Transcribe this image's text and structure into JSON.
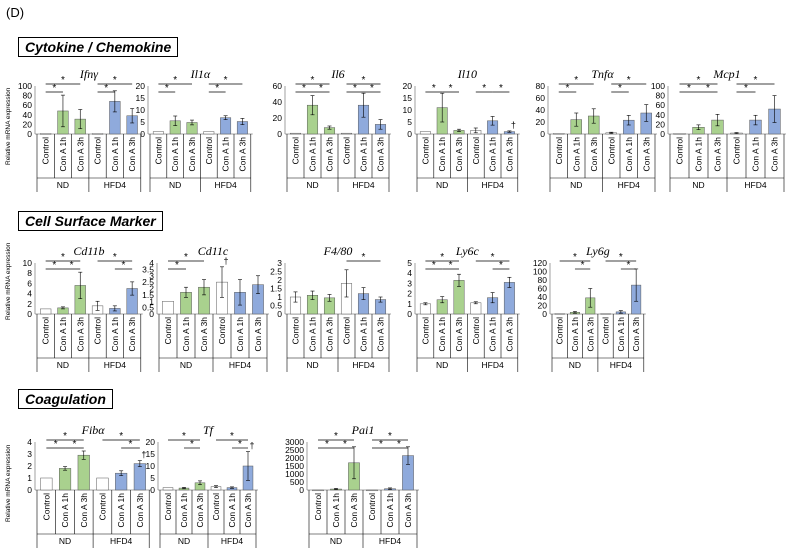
{
  "panel_label": "(D)",
  "sections": [
    {
      "title": "Cytokine / Chemokine"
    },
    {
      "title": "Cell Surface Marker"
    },
    {
      "title": "Coagulation"
    }
  ],
  "y_axis_label": "Relative mRNA expression",
  "colors": {
    "nd": "#a9d18e",
    "hfd4": "#8faadc",
    "control": "#ffffff",
    "edge": "#595959"
  },
  "chart_data": [
    {
      "type": "bar",
      "section": 0,
      "title": "Ifnγ",
      "categories": [
        "Control",
        "Con A 1h",
        "Con A 3h",
        "Control",
        "Con A 1h",
        "Con A 3h"
      ],
      "groups": [
        "ND",
        "HFD4"
      ],
      "values": [
        1,
        48,
        31,
        1,
        68,
        38
      ],
      "errors": [
        0,
        33,
        20,
        0,
        22,
        15
      ],
      "ylim": [
        0,
        100
      ],
      "yticks": [
        0,
        20,
        40,
        60,
        80,
        100
      ],
      "sig": [
        [
          0,
          1,
          "*"
        ],
        [
          0,
          2,
          "*"
        ],
        [
          3,
          4,
          "*"
        ],
        [
          3,
          5,
          "*"
        ]
      ],
      "markers": []
    },
    {
      "type": "bar",
      "section": 0,
      "title": "Il1α",
      "categories": [
        "Control",
        "Con A 1h",
        "Con A 3h",
        "Control",
        "Con A 1h",
        "Con A 3h"
      ],
      "groups": [
        "ND",
        "HFD4"
      ],
      "values": [
        1,
        5.5,
        4.8,
        1,
        6.8,
        5.2
      ],
      "errors": [
        0,
        2,
        1,
        0,
        0.8,
        1.3
      ],
      "ylim": [
        0,
        20
      ],
      "yticks": [
        0,
        5,
        10,
        15,
        20
      ],
      "sig": [
        [
          0,
          1,
          "*"
        ],
        [
          0,
          2,
          "*"
        ],
        [
          3,
          4,
          "*"
        ],
        [
          3,
          5,
          "*"
        ]
      ],
      "markers": []
    },
    {
      "type": "bar",
      "section": 0,
      "title": "Il6",
      "categories": [
        "Control",
        "Con A 1h",
        "Con A 3h",
        "Control",
        "Con A 1h",
        "Con A 3h"
      ],
      "groups": [
        "ND",
        "HFD4"
      ],
      "values": [
        1,
        36,
        8,
        1,
        36,
        12
      ],
      "errors": [
        0,
        12,
        2,
        0,
        15,
        6
      ],
      "ylim": [
        0,
        60
      ],
      "yticks": [
        0,
        20,
        40,
        60
      ],
      "sig": [
        [
          0,
          1,
          "*"
        ],
        [
          1,
          2,
          "*"
        ],
        [
          0,
          2,
          "*"
        ],
        [
          3,
          4,
          "*"
        ],
        [
          4,
          5,
          "*"
        ],
        [
          3,
          5,
          "*"
        ]
      ],
      "markers": []
    },
    {
      "type": "bar",
      "section": 0,
      "title": "Il10",
      "categories": [
        "Control",
        "Con A 1h",
        "Con A 3h",
        "Control",
        "Con A 1h",
        "Con A 3h"
      ],
      "groups": [
        "ND",
        "HFD4"
      ],
      "values": [
        1,
        11,
        1.5,
        1.5,
        5.5,
        1
      ],
      "errors": [
        0,
        6,
        0.5,
        1,
        1.8,
        0.3
      ],
      "ylim": [
        0,
        20
      ],
      "yticks": [
        0,
        5,
        10,
        15,
        20
      ],
      "sig": [
        [
          0,
          1,
          "*"
        ],
        [
          1,
          2,
          "*"
        ],
        [
          3,
          4,
          "*"
        ],
        [
          4,
          5,
          "*"
        ]
      ],
      "markers": [
        [
          5,
          "†"
        ]
      ]
    },
    {
      "type": "bar",
      "section": 0,
      "title": "Tnfα",
      "categories": [
        "Control",
        "Con A 1h",
        "Con A 3h",
        "Control",
        "Con A 1h",
        "Con A 3h"
      ],
      "groups": [
        "ND",
        "HFD4"
      ],
      "values": [
        1,
        24,
        30,
        2,
        23,
        35
      ],
      "errors": [
        0,
        11,
        12,
        1,
        8,
        14
      ],
      "ylim": [
        0,
        80
      ],
      "yticks": [
        0,
        20,
        40,
        60,
        80
      ],
      "sig": [
        [
          0,
          1,
          "*"
        ],
        [
          0,
          2,
          "*"
        ],
        [
          3,
          4,
          "*"
        ],
        [
          3,
          5,
          "*"
        ]
      ],
      "markers": []
    },
    {
      "type": "bar",
      "section": 0,
      "title": "Mcp1",
      "categories": [
        "Control",
        "Con A 1h",
        "Con A 3h",
        "Control",
        "Con A 1h",
        "Con A 3h"
      ],
      "groups": [
        "ND",
        "HFD4"
      ],
      "values": [
        1,
        14,
        29,
        2,
        29,
        52
      ],
      "errors": [
        0,
        5,
        12,
        1,
        10,
        28
      ],
      "ylim": [
        0,
        100
      ],
      "yticks": [
        0,
        20,
        40,
        60,
        80,
        100
      ],
      "sig": [
        [
          0,
          1,
          "*"
        ],
        [
          1,
          2,
          "*"
        ],
        [
          0,
          2,
          "*"
        ],
        [
          3,
          4,
          "*"
        ],
        [
          3,
          5,
          "*"
        ]
      ],
      "markers": []
    },
    {
      "type": "bar",
      "section": 1,
      "title": "Cd11b",
      "categories": [
        "Control",
        "Con A 1h",
        "Con A 3h",
        "Control",
        "Con A 1h",
        "Con A 3h"
      ],
      "groups": [
        "ND",
        "HFD4"
      ],
      "values": [
        1,
        1.2,
        5.6,
        1.6,
        1.1,
        5
      ],
      "errors": [
        0,
        0.2,
        2.6,
        0.9,
        0.5,
        1.3
      ],
      "ylim": [
        0,
        10
      ],
      "yticks": [
        0,
        2,
        4,
        6,
        8,
        10
      ],
      "sig": [
        [
          0,
          1,
          "*"
        ],
        [
          1,
          2,
          "*"
        ],
        [
          0,
          2,
          "*"
        ],
        [
          4,
          5,
          "*"
        ],
        [
          3,
          5,
          "*"
        ]
      ],
      "markers": []
    },
    {
      "type": "bar",
      "section": 1,
      "title": "Cd11c",
      "categories": [
        "Control",
        "Con A 1h",
        "Con A 3h",
        "Control",
        "Con A 1h",
        "Con A 3h"
      ],
      "groups": [
        "ND",
        "HFD4"
      ],
      "values": [
        1,
        1.7,
        2.1,
        2.5,
        1.7,
        2.3
      ],
      "errors": [
        0,
        0.4,
        0.6,
        1.2,
        1,
        0.7
      ],
      "ylim": [
        0,
        4
      ],
      "yticks": [
        0,
        0.5,
        1,
        1.5,
        2,
        2.5,
        3,
        3.5,
        4
      ],
      "sig": [
        [
          0,
          1,
          "*"
        ],
        [
          0,
          2,
          "*"
        ]
      ],
      "markers": [
        [
          3,
          "†"
        ]
      ]
    },
    {
      "type": "bar",
      "section": 1,
      "title": "F4/80",
      "categories": [
        "Control",
        "Con A 1h",
        "Con A 3h",
        "Control",
        "Con A 1h",
        "Con A 3h"
      ],
      "groups": [
        "ND",
        "HFD4"
      ],
      "values": [
        1,
        1.1,
        0.95,
        1.8,
        1.2,
        0.85
      ],
      "errors": [
        0.3,
        0.25,
        0.2,
        0.8,
        0.35,
        0.15
      ],
      "ylim": [
        0,
        3
      ],
      "yticks": [
        0,
        0.5,
        1,
        1.5,
        2,
        2.5,
        3
      ],
      "sig": [
        [
          3,
          5,
          "*"
        ]
      ],
      "markers": []
    },
    {
      "type": "bar",
      "section": 1,
      "title": "Ly6c",
      "categories": [
        "Control",
        "Con A 1h",
        "Con A 3h",
        "Control",
        "Con A 1h",
        "Con A 3h"
      ],
      "groups": [
        "ND",
        "HFD4"
      ],
      "values": [
        1,
        1.4,
        3.3,
        1.1,
        1.6,
        3.1
      ],
      "errors": [
        0.1,
        0.3,
        0.6,
        0.1,
        0.5,
        0.5
      ],
      "ylim": [
        0,
        5
      ],
      "yticks": [
        0,
        1,
        2,
        3,
        4,
        5
      ],
      "sig": [
        [
          0,
          1,
          "*"
        ],
        [
          1,
          2,
          "*"
        ],
        [
          0,
          2,
          "*"
        ],
        [
          4,
          5,
          "*"
        ],
        [
          3,
          5,
          "*"
        ]
      ],
      "markers": []
    },
    {
      "type": "bar",
      "section": 1,
      "title": "Ly6g",
      "categories": [
        "Control",
        "Con A 1h",
        "Con A 3h",
        "Control",
        "Con A 1h",
        "Con A 3h"
      ],
      "groups": [
        "ND",
        "HFD4"
      ],
      "values": [
        1,
        4,
        38,
        1,
        5,
        68
      ],
      "errors": [
        0,
        2,
        22,
        0,
        3,
        38
      ],
      "ylim": [
        0,
        120
      ],
      "yticks": [
        0,
        20,
        40,
        60,
        80,
        100,
        120
      ],
      "sig": [
        [
          1,
          2,
          "*"
        ],
        [
          0,
          2,
          "*"
        ],
        [
          4,
          5,
          "*"
        ],
        [
          3,
          5,
          "*"
        ]
      ],
      "markers": []
    },
    {
      "type": "bar",
      "section": 2,
      "title": "Fibα",
      "categories": [
        "Control",
        "Con A 1h",
        "Con A 3h",
        "Control",
        "Con A 1h",
        "Con A 3h"
      ],
      "groups": [
        "ND",
        "HFD4"
      ],
      "values": [
        1,
        1.8,
        2.9,
        1,
        1.4,
        2.2
      ],
      "errors": [
        0,
        0.15,
        0.35,
        0,
        0.2,
        0.25
      ],
      "ylim": [
        0,
        4
      ],
      "yticks": [
        0,
        1,
        2,
        3,
        4
      ],
      "sig": [
        [
          0,
          1,
          "*"
        ],
        [
          1,
          2,
          "*"
        ],
        [
          0,
          2,
          "*"
        ],
        [
          4,
          5,
          "*"
        ],
        [
          3,
          5,
          "*"
        ]
      ],
      "markers": [
        [
          5,
          "†"
        ]
      ]
    },
    {
      "type": "bar",
      "section": 2,
      "title": "Tf",
      "categories": [
        "Control",
        "Con A 1h",
        "Con A 3h",
        "Control",
        "Con A 1h",
        "Con A 3h"
      ],
      "groups": [
        "ND",
        "HFD4"
      ],
      "values": [
        1,
        0.8,
        3,
        1.4,
        1,
        10
      ],
      "errors": [
        0,
        0.3,
        0.8,
        0.4,
        0.3,
        6
      ],
      "ylim": [
        0,
        20
      ],
      "yticks": [
        0,
        5,
        10,
        15,
        20
      ],
      "sig": [
        [
          1,
          2,
          "*"
        ],
        [
          0,
          2,
          "*"
        ],
        [
          4,
          5,
          "*"
        ],
        [
          3,
          5,
          "*"
        ]
      ],
      "markers": [
        [
          5,
          "†"
        ]
      ]
    },
    {
      "type": "bar",
      "section": 2,
      "title": "Pai1",
      "categories": [
        "Control",
        "Con A 1h",
        "Con A 3h",
        "Control",
        "Con A 1h",
        "Con A 3h"
      ],
      "groups": [
        "ND",
        "HFD4"
      ],
      "values": [
        1,
        60,
        1700,
        1,
        80,
        2150
      ],
      "errors": [
        0,
        40,
        1000,
        0,
        50,
        550
      ],
      "ylim": [
        0,
        3000
      ],
      "yticks": [
        0,
        500,
        1000,
        1500,
        2000,
        2500,
        3000
      ],
      "sig": [
        [
          0,
          1,
          "*"
        ],
        [
          1,
          2,
          "*"
        ],
        [
          0,
          2,
          "*"
        ],
        [
          3,
          4,
          "*"
        ],
        [
          4,
          5,
          "*"
        ],
        [
          3,
          5,
          "*"
        ]
      ],
      "markers": []
    }
  ]
}
